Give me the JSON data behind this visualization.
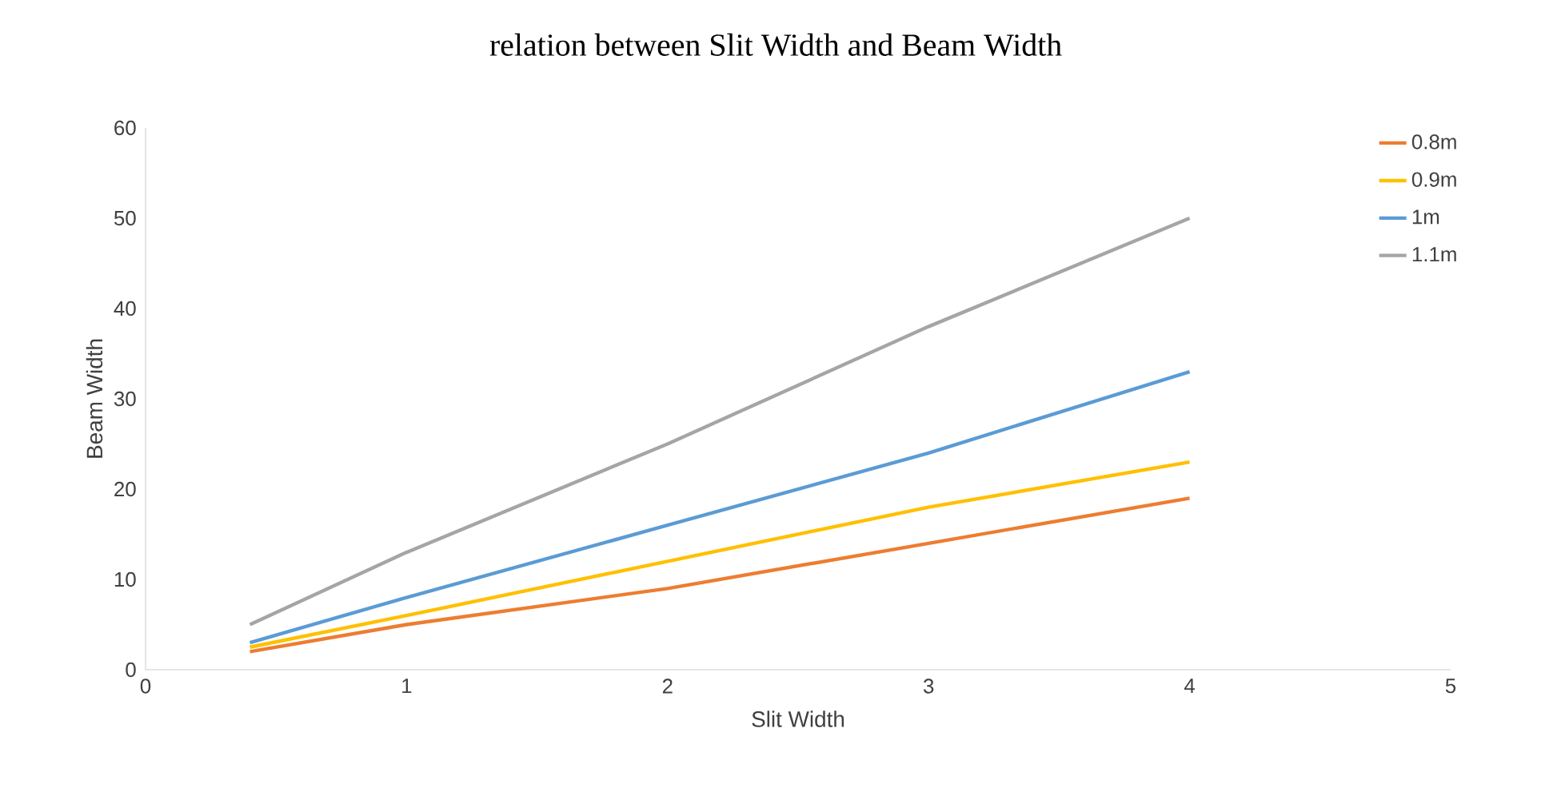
{
  "chart_data": {
    "type": "line",
    "title": "relation between Slit Width and Beam Width",
    "xlabel": "Slit Width",
    "ylabel": "Beam Width",
    "x": [
      0.4,
      1,
      2,
      3,
      4
    ],
    "series": [
      {
        "name": "0.8m",
        "color": "#ed7d31",
        "values": [
          2,
          5,
          9,
          14,
          19
        ]
      },
      {
        "name": "0.9m",
        "color": "#ffc000",
        "values": [
          2.5,
          6,
          12,
          18,
          23
        ]
      },
      {
        "name": "1m",
        "color": "#5b9bd5",
        "values": [
          3,
          8,
          16,
          24,
          33
        ]
      },
      {
        "name": "1.1m",
        "color": "#a5a5a5",
        "values": [
          5,
          13,
          25,
          38,
          50
        ]
      }
    ],
    "xlim": [
      0,
      5
    ],
    "xticks": [
      0,
      1,
      2,
      3,
      4,
      5
    ],
    "ylim": [
      0,
      60
    ],
    "yticks": [
      0,
      10,
      20,
      30,
      40,
      50,
      60
    ],
    "grid": false,
    "legend": "right",
    "marker": "none",
    "line_style": "solid"
  }
}
